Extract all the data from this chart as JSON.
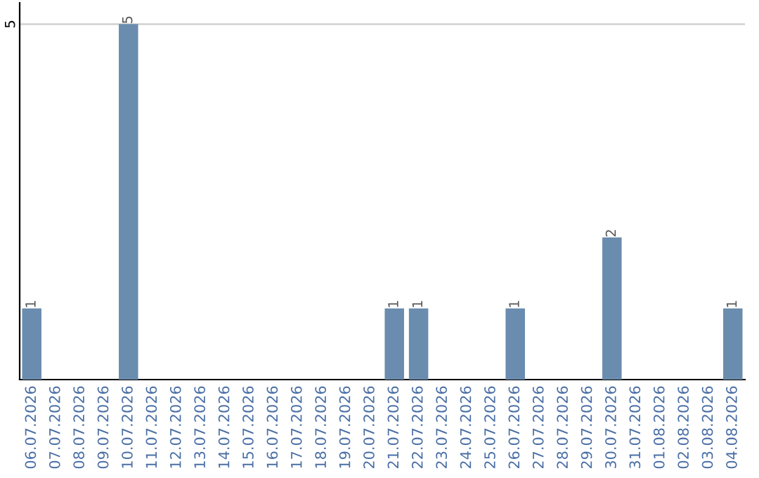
{
  "chart_data": {
    "type": "bar",
    "categories": [
      "06.07.2026",
      "07.07.2026",
      "08.07.2026",
      "09.07.2026",
      "10.07.2026",
      "11.07.2026",
      "12.07.2026",
      "13.07.2026",
      "14.07.2026",
      "15.07.2026",
      "16.07.2026",
      "17.07.2026",
      "18.07.2026",
      "19.07.2026",
      "20.07.2026",
      "21.07.2026",
      "22.07.2026",
      "23.07.2026",
      "24.07.2026",
      "25.07.2026",
      "26.07.2026",
      "27.07.2026",
      "28.07.2026",
      "29.07.2026",
      "30.07.2026",
      "31.07.2026",
      "01.08.2026",
      "02.08.2026",
      "03.08.2026",
      "04.08.2026"
    ],
    "values": [
      1,
      0,
      0,
      0,
      5,
      0,
      0,
      0,
      0,
      0,
      0,
      0,
      0,
      0,
      0,
      1,
      1,
      0,
      0,
      0,
      1,
      0,
      0,
      0,
      2,
      0,
      0,
      0,
      0,
      1
    ],
    "value_labels": [
      "1",
      null,
      null,
      null,
      "5",
      null,
      null,
      null,
      null,
      null,
      null,
      null,
      null,
      null,
      null,
      "1",
      "1",
      null,
      null,
      null,
      "1",
      null,
      null,
      null,
      "2",
      null,
      null,
      null,
      null,
      "1"
    ],
    "color": "#6a8cae",
    "ylim": [
      0,
      5.3
    ],
    "yticks": [
      5
    ],
    "grid": "y",
    "legend": false
  }
}
